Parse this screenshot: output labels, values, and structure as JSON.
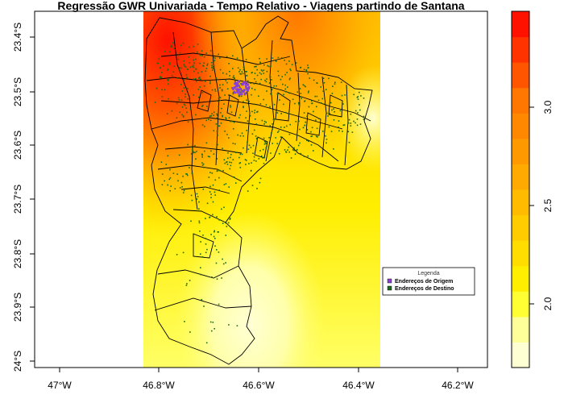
{
  "title": "Regressão GWR Univariada - Tempo Relativo - Viagens partindo de Santana",
  "x_ticks": [
    "47°W",
    "46.8°W",
    "46.6°W",
    "46.4°W",
    "46.2°W"
  ],
  "y_ticks": [
    "23.4°S",
    "23.5°S",
    "23.6°S",
    "23.7°S",
    "23.8°S",
    "23.9°S",
    "24°S"
  ],
  "legend": {
    "title": "Legenda",
    "items": [
      {
        "label": "Endereços de Origem",
        "color": "#8a3fd6"
      },
      {
        "label": "Endereços de Destino",
        "color": "#1a6b1a"
      }
    ]
  },
  "colorbar": {
    "labels": [
      "2.0",
      "2.5",
      "3.0"
    ],
    "colors": [
      "#ffffd4",
      "#ffff99",
      "#ffff33",
      "#ffee00",
      "#ffdd00",
      "#ffcc00",
      "#ffbb00",
      "#ffaa00",
      "#ff9900",
      "#ff8800",
      "#ff7700",
      "#ff5500",
      "#ff3300",
      "#ff1100"
    ]
  },
  "chart_data": {
    "type": "heatmap",
    "title": "Regressão GWR Univariada - Tempo Relativo - Viagens partindo de Santana",
    "x_ticks": [
      "47°W",
      "46.8°W",
      "46.6°W",
      "46.4°W",
      "46.2°W"
    ],
    "y_ticks": [
      "23.4°S",
      "23.5°S",
      "23.6°S",
      "23.7°S",
      "23.8°S",
      "23.9°S",
      "24°S"
    ],
    "xlim": [
      -47.03,
      -46.13
    ],
    "ylim": [
      -24.0,
      -23.37
    ],
    "color_scale_ticks": [
      2.0,
      2.5,
      3.0
    ],
    "legend": [
      "Endereços de Origem",
      "Endereços de Destino"
    ]
  }
}
